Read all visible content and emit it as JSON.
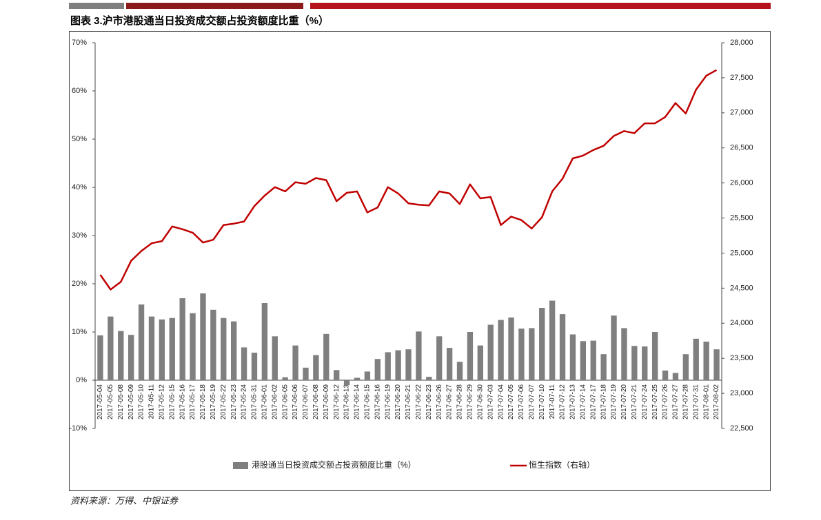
{
  "chart_data": {
    "type": "combo",
    "title": "图表 3.沪市港股通当日投资成交额占投资额度比重（%）",
    "source": "资料来源：万得、中银证券",
    "categories": [
      "2017-05-04",
      "2017-05-05",
      "2017-05-08",
      "2017-05-09",
      "2017-05-10",
      "2017-05-11",
      "2017-05-12",
      "2017-05-15",
      "2017-05-16",
      "2017-05-17",
      "2017-05-18",
      "2017-05-19",
      "2017-05-22",
      "2017-05-23",
      "2017-05-24",
      "2017-05-31",
      "2017-06-01",
      "2017-06-02",
      "2017-06-05",
      "2017-06-06",
      "2017-06-07",
      "2017-06-08",
      "2017-06-09",
      "2017-06-12",
      "2017-06-13",
      "2017-06-14",
      "2017-06-15",
      "2017-06-16",
      "2017-06-19",
      "2017-06-20",
      "2017-06-21",
      "2017-06-22",
      "2017-06-23",
      "2017-06-26",
      "2017-06-27",
      "2017-06-28",
      "2017-06-29",
      "2017-06-30",
      "2017-07-03",
      "2017-07-04",
      "2017-07-05",
      "2017-07-06",
      "2017-07-07",
      "2017-07-10",
      "2017-07-11",
      "2017-07-12",
      "2017-07-13",
      "2017-07-14",
      "2017-07-17",
      "2017-07-18",
      "2017-07-19",
      "2017-07-20",
      "2017-07-21",
      "2017-07-24",
      "2017-07-25",
      "2017-07-26",
      "2017-07-27",
      "2017-07-28",
      "2017-07-31",
      "2017-08-01",
      "2017-08-02"
    ],
    "series": [
      {
        "name": "港股通当日投资成交额占投资额度比重（%）",
        "type": "bar",
        "color": "#7f7f7f",
        "values": [
          9.3,
          13.2,
          10.2,
          9.4,
          15.7,
          13.2,
          12.6,
          12.9,
          17.0,
          13.9,
          18.0,
          14.6,
          12.9,
          12.2,
          6.8,
          5.7,
          16.0,
          9.1,
          0.6,
          7.2,
          2.6,
          5.2,
          9.6,
          2.1,
          -1.0,
          0.5,
          1.8,
          4.4,
          5.8,
          6.2,
          6.4,
          10.1,
          0.7,
          9.1,
          6.7,
          3.8,
          10.0,
          7.2,
          11.5,
          12.5,
          13.0,
          10.7,
          10.8,
          15.0,
          16.5,
          13.7,
          9.5,
          8.1,
          8.2,
          5.4,
          13.4,
          10.8,
          7.1,
          7.0,
          10.0,
          2.0,
          1.5,
          5.4,
          8.6,
          8.0,
          6.4
        ]
      },
      {
        "name": "恒生指数（右轴）",
        "type": "line",
        "axis": "y2",
        "color": "#c00000",
        "values": [
          24690,
          24480,
          24590,
          24890,
          25030,
          25140,
          25170,
          25380,
          25340,
          25290,
          25150,
          25190,
          25400,
          25420,
          25450,
          25670,
          25820,
          25940,
          25880,
          26010,
          25990,
          26070,
          26040,
          25740,
          25860,
          25880,
          25580,
          25650,
          25940,
          25850,
          25710,
          25690,
          25680,
          25880,
          25850,
          25700,
          25980,
          25780,
          25800,
          25400,
          25520,
          25470,
          25350,
          25510,
          25880,
          26060,
          26350,
          26390,
          26470,
          26530,
          26670,
          26740,
          26710,
          26850,
          26850,
          26940,
          27140,
          26990,
          27330,
          27530,
          27610
        ]
      }
    ],
    "ylim": [
      -10,
      70
    ],
    "yticks": [
      {
        "value": -10,
        "label": "-10%"
      },
      {
        "value": 0,
        "label": "0%"
      },
      {
        "value": 10,
        "label": "10%"
      },
      {
        "value": 20,
        "label": "20%"
      },
      {
        "value": 30,
        "label": "30%"
      },
      {
        "value": 40,
        "label": "40%"
      },
      {
        "value": 50,
        "label": "50%"
      },
      {
        "value": 60,
        "label": "60%"
      },
      {
        "value": 70,
        "label": "70%"
      }
    ],
    "y2lim": [
      22500,
      28000
    ],
    "y2ticks": [
      {
        "value": 22500,
        "label": "22,500"
      },
      {
        "value": 23000,
        "label": "23,000"
      },
      {
        "value": 23500,
        "label": "23,500"
      },
      {
        "value": 24000,
        "label": "24,000"
      },
      {
        "value": 24500,
        "label": "24,500"
      },
      {
        "value": 25000,
        "label": "25,000"
      },
      {
        "value": 25500,
        "label": "25,500"
      },
      {
        "value": 26000,
        "label": "26,000"
      },
      {
        "value": 26500,
        "label": "26,500"
      },
      {
        "value": 27000,
        "label": "27,000"
      },
      {
        "value": 27500,
        "label": "27,500"
      },
      {
        "value": 28000,
        "label": "28,000"
      }
    ],
    "grid": false
  }
}
